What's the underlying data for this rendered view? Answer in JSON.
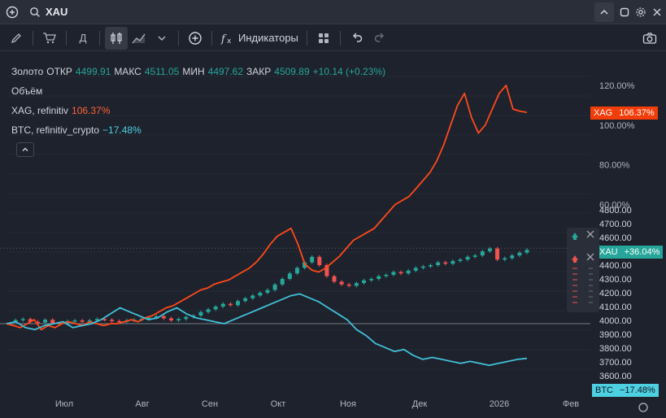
{
  "search": {
    "symbol": "XAU"
  },
  "toolbar": {
    "interval_label": "Д",
    "indicators_label": "Индикаторы"
  },
  "legend": {
    "main": {
      "name": "Золото",
      "open_label": "ОТКР",
      "open": "4499.91",
      "high_label": "МАКС",
      "high": "4511.05",
      "low_label": "МИН",
      "low": "4497.62",
      "close_label": "ЗАКР",
      "close": "4509.89",
      "change": "+10.14 (+0.23%)"
    },
    "volume": "Объём",
    "xag": {
      "name": "XAG, refinitiv",
      "value": "106.37%"
    },
    "btc": {
      "name": "BTC, refinitiv_crypto",
      "value": "−17.48%"
    }
  },
  "tags": {
    "xag": {
      "name": "XAG",
      "value": "106.37%",
      "color": "#f23d0a"
    },
    "xau": {
      "name": "XAU",
      "value": "+36.04%",
      "color": "#26a69a"
    },
    "btc": {
      "name": "BTC",
      "value": "−17.48%",
      "color": "#4dd0e1"
    }
  },
  "colors": {
    "up": "#26a69a",
    "down": "#ef5350",
    "xag": "#ff4a1a",
    "btc": "#42c0d9",
    "bg": "#1e222d"
  },
  "chart_data": {
    "type": "line",
    "x_ticks": [
      "Июл",
      "Авг",
      "Сен",
      "Окт",
      "Ноя",
      "Дек",
      "2026",
      "Фев"
    ],
    "percent_axis": {
      "ticks": [
        "60.00%",
        "80.00%",
        "100.00%",
        "120.00%"
      ]
    },
    "price_axis": {
      "ticks": [
        "3600.00",
        "3700.00",
        "3800.00",
        "3900.00",
        "4000.00",
        "4100.00",
        "4200.00",
        "4300.00",
        "4400.00",
        "4500.00",
        "4600.00",
        "4700.00",
        "4800.00"
      ]
    },
    "series": [
      {
        "name": "XAU",
        "unit": "price",
        "values": [
          3995,
          4002,
          4010,
          3990,
          3985,
          4005,
          3980,
          3975,
          3995,
          4000,
          3990,
          4000,
          4010,
          4005,
          3995,
          3990,
          4000,
          4005,
          4010,
          4020,
          4030,
          4015,
          4000,
          4010,
          4025,
          4035,
          4060,
          4080,
          4100,
          4120,
          4110,
          4140,
          4160,
          4180,
          4200,
          4220,
          4260,
          4300,
          4340,
          4380,
          4420,
          4460,
          4400,
          4320,
          4280,
          4260,
          4250,
          4270,
          4290,
          4300,
          4320,
          4330,
          4350,
          4340,
          4360,
          4380,
          4390,
          4400,
          4420,
          4410,
          4430,
          4440,
          4460,
          4470,
          4500,
          4520,
          4440,
          4450,
          4470,
          4490,
          4510
        ]
      },
      {
        "name": "XAG",
        "unit": "percent",
        "values": [
          0,
          -1,
          -2,
          0,
          2,
          -3,
          -1,
          -2,
          0,
          1,
          0,
          -1,
          1,
          0,
          -1,
          0,
          0,
          1,
          2,
          1,
          3,
          4,
          6,
          8,
          9,
          11,
          13,
          15,
          17,
          18,
          20,
          21,
          22,
          24,
          26,
          28,
          31,
          35,
          40,
          44,
          46,
          48,
          40,
          30,
          27,
          26,
          28,
          31,
          34,
          38,
          42,
          44,
          46,
          48,
          52,
          56,
          60,
          62,
          64,
          68,
          72,
          76,
          82,
          90,
          100,
          110,
          116,
          104,
          96,
          100,
          108,
          116,
          120,
          108,
          107,
          106.37
        ]
      },
      {
        "name": "BTC",
        "unit": "percent",
        "values": [
          0,
          1,
          -2,
          -3,
          -1,
          0,
          1,
          -2,
          -1,
          0,
          2,
          5,
          8,
          6,
          4,
          2,
          3,
          6,
          8,
          5,
          3,
          2,
          1,
          0,
          2,
          4,
          6,
          8,
          10,
          12,
          14,
          15,
          13,
          11,
          8,
          5,
          2,
          -3,
          -6,
          -10,
          -12,
          -14,
          -13,
          -16,
          -18,
          -17,
          -18,
          -19,
          -20,
          -19,
          -20,
          -21,
          -20,
          -19,
          -18,
          -17.48
        ]
      }
    ]
  }
}
